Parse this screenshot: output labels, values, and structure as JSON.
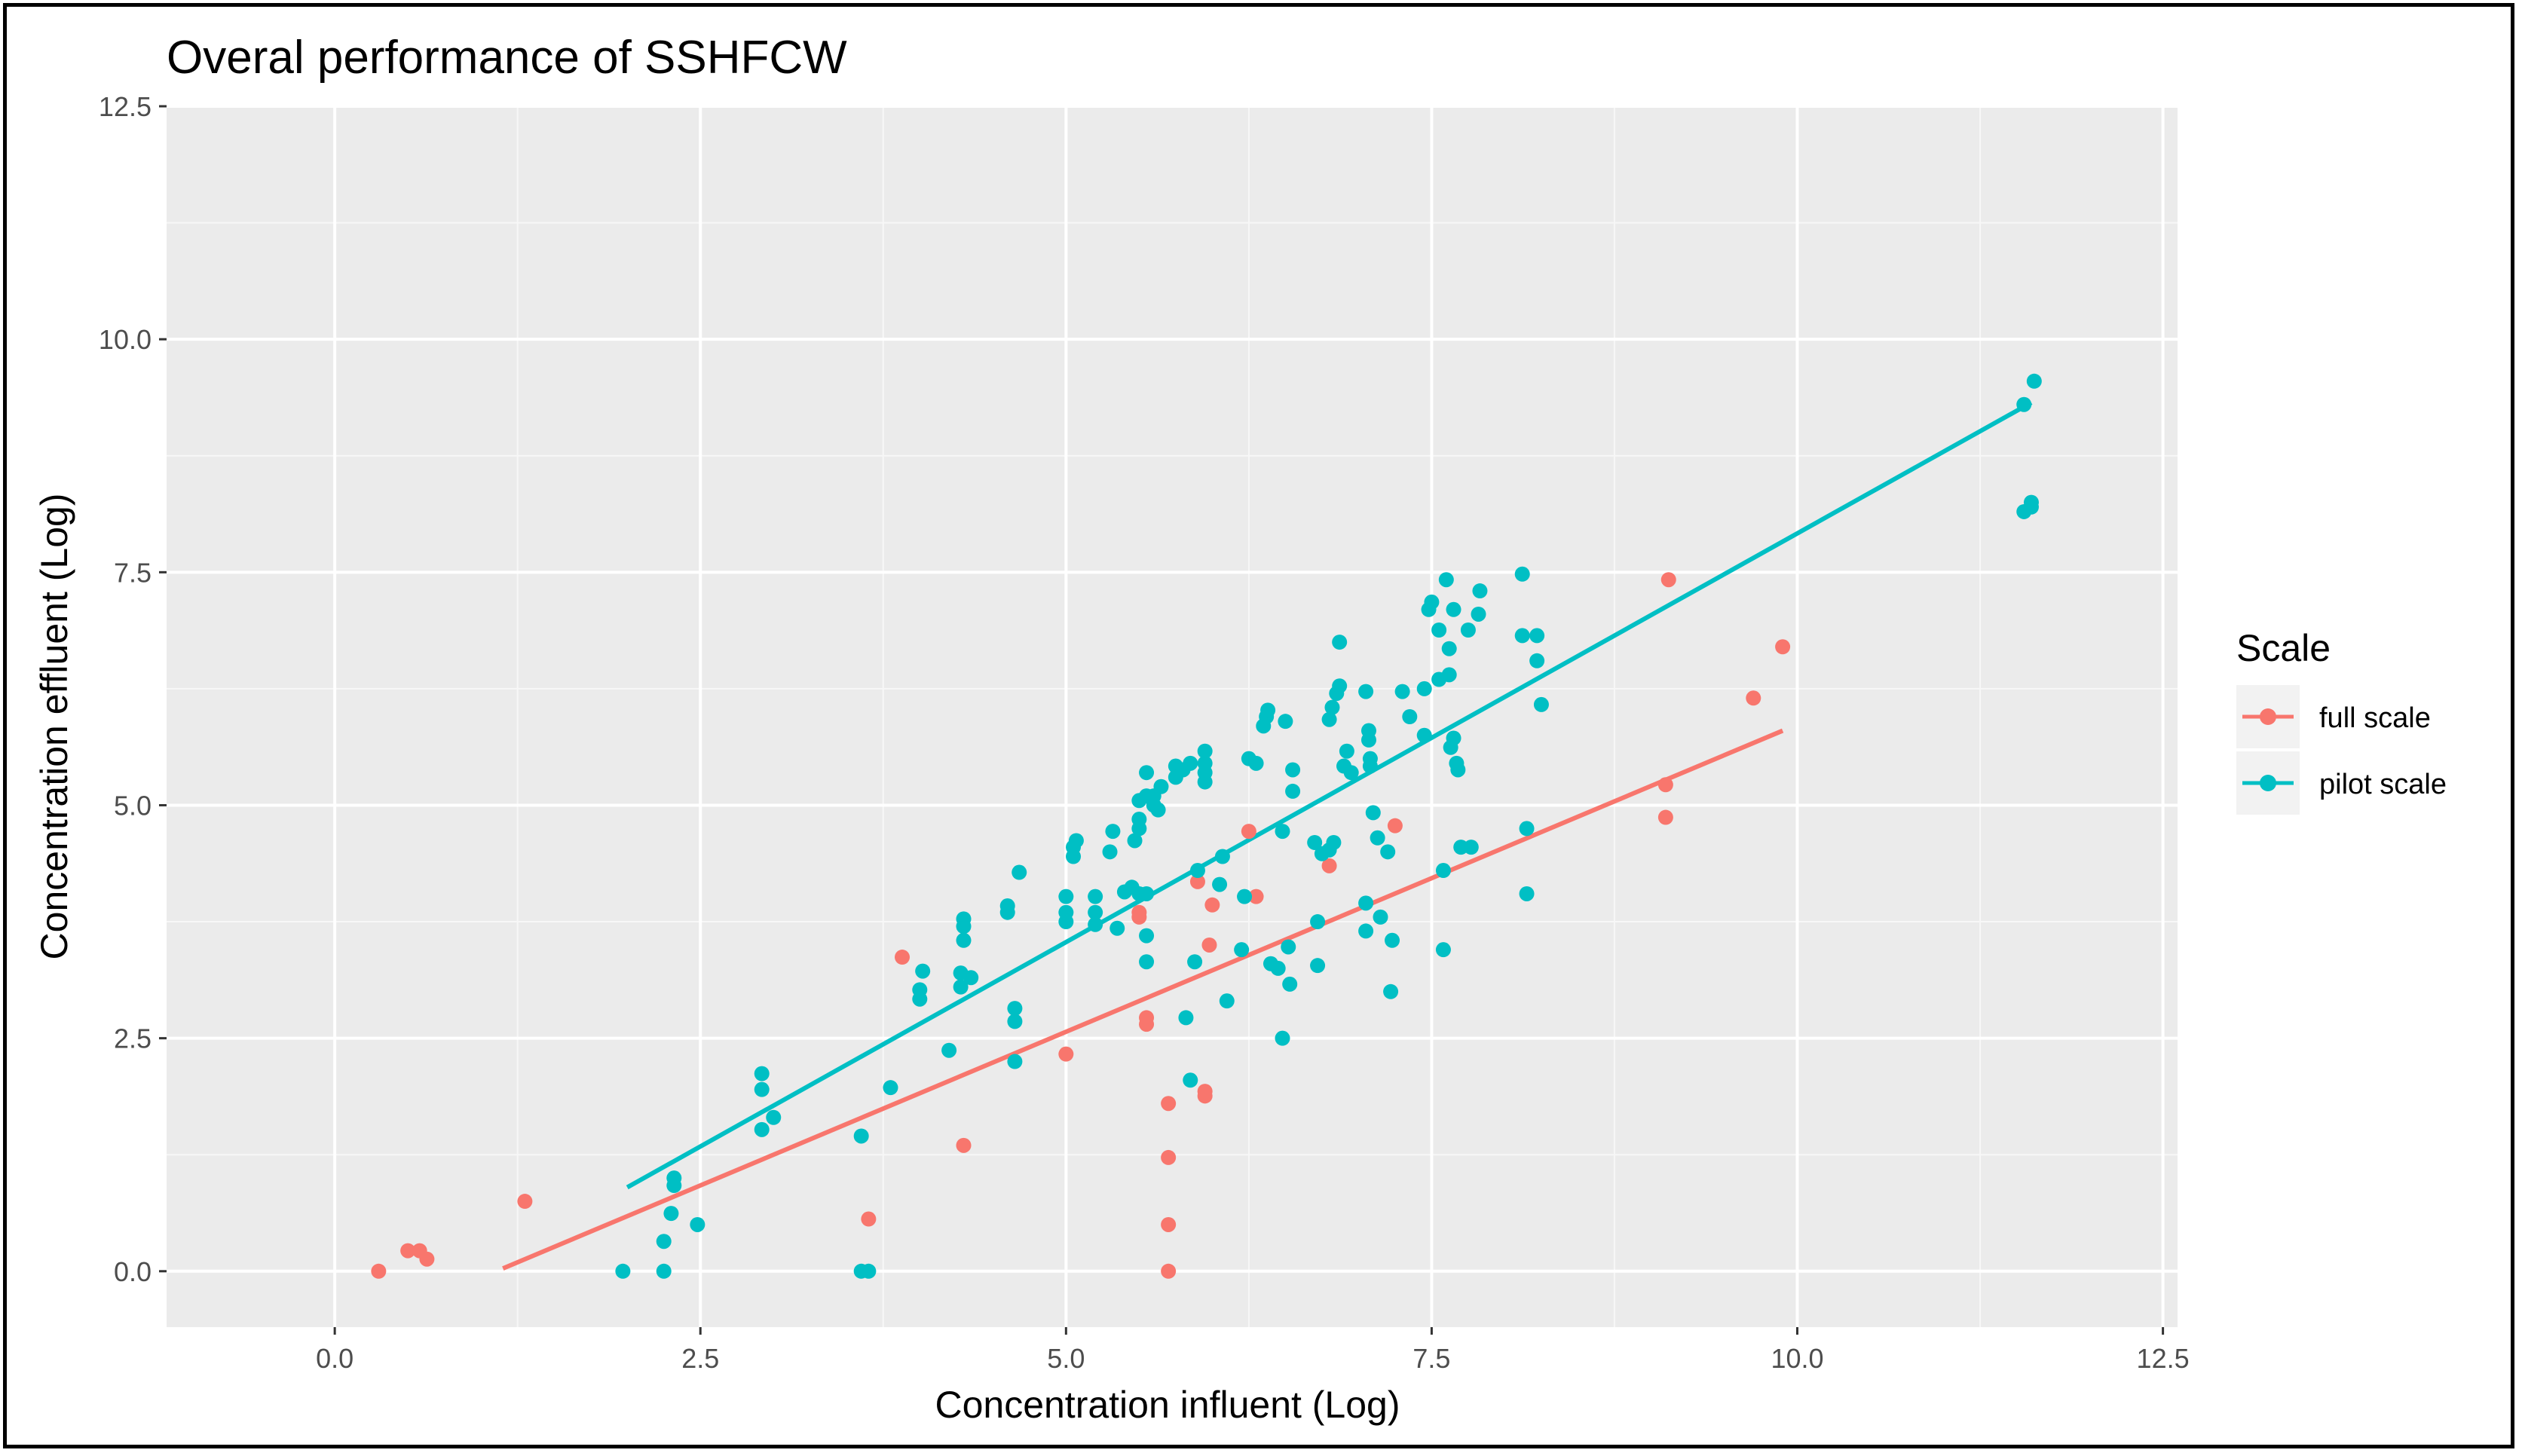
{
  "chart_data": {
    "type": "scatter",
    "title": "Overal performance of SSHFCW",
    "xlabel": "Concentration influent (Log)",
    "ylabel": "Concentration effluent (Log)",
    "xlim": [
      -1.15,
      12.6
    ],
    "ylim": [
      -0.6,
      12.5
    ],
    "x_ticks": [
      0.0,
      2.5,
      5.0,
      7.5,
      10.0,
      12.5
    ],
    "y_ticks": [
      0.0,
      2.5,
      5.0,
      7.5,
      10.0,
      12.5
    ],
    "x_tick_labels": [
      "0.0",
      "2.5",
      "5.0",
      "7.5",
      "10.0",
      "12.5"
    ],
    "y_tick_labels": [
      "0.0",
      "2.5",
      "5.0",
      "7.5",
      "10.0",
      "12.5"
    ],
    "grid": true,
    "legend": {
      "title": "Scale",
      "position": "right"
    },
    "series": [
      {
        "name": "full scale",
        "color": "#F8766D",
        "fit_line": {
          "x": [
            1.15,
            9.9
          ],
          "y": [
            0.03,
            5.8
          ]
        },
        "points": [
          [
            0.3,
            0.0
          ],
          [
            0.5,
            0.22
          ],
          [
            0.58,
            0.22
          ],
          [
            0.63,
            0.13
          ],
          [
            1.3,
            0.75
          ],
          [
            3.65,
            0.56
          ],
          [
            3.88,
            3.37
          ],
          [
            4.3,
            1.35
          ],
          [
            5.0,
            2.33
          ],
          [
            5.5,
            3.8
          ],
          [
            5.5,
            3.85
          ],
          [
            5.55,
            2.65
          ],
          [
            5.55,
            2.72
          ],
          [
            5.7,
            1.8
          ],
          [
            5.7,
            1.22
          ],
          [
            5.7,
            0.5
          ],
          [
            5.7,
            0.0
          ],
          [
            5.9,
            4.18
          ],
          [
            5.95,
            1.88
          ],
          [
            5.95,
            1.93
          ],
          [
            5.98,
            3.5
          ],
          [
            6.0,
            3.93
          ],
          [
            6.25,
            4.72
          ],
          [
            6.3,
            4.02
          ],
          [
            6.8,
            4.35
          ],
          [
            7.25,
            4.78
          ],
          [
            9.1,
            5.22
          ],
          [
            9.1,
            4.87
          ],
          [
            9.12,
            7.42
          ],
          [
            9.7,
            6.15
          ],
          [
            9.9,
            6.7
          ]
        ]
      },
      {
        "name": "pilot scale",
        "color": "#00BFC4",
        "fit_line": {
          "x": [
            2.0,
            11.6
          ],
          "y": [
            0.9,
            9.32
          ]
        },
        "points": [
          [
            1.97,
            0.0
          ],
          [
            2.25,
            0.0
          ],
          [
            2.25,
            0.32
          ],
          [
            2.3,
            0.62
          ],
          [
            2.32,
            0.92
          ],
          [
            2.32,
            1.0
          ],
          [
            2.48,
            0.5
          ],
          [
            2.92,
            1.52
          ],
          [
            2.92,
            1.95
          ],
          [
            2.92,
            2.12
          ],
          [
            3.0,
            1.65
          ],
          [
            3.6,
            1.45
          ],
          [
            3.6,
            0.0
          ],
          [
            3.65,
            0.0
          ],
          [
            3.8,
            1.97
          ],
          [
            4.0,
            2.92
          ],
          [
            4.0,
            3.02
          ],
          [
            4.02,
            3.22
          ],
          [
            4.2,
            2.37
          ],
          [
            4.28,
            3.05
          ],
          [
            4.28,
            3.2
          ],
          [
            4.3,
            3.55
          ],
          [
            4.3,
            3.7
          ],
          [
            4.3,
            3.78
          ],
          [
            4.35,
            3.15
          ],
          [
            4.6,
            3.85
          ],
          [
            4.6,
            3.92
          ],
          [
            4.65,
            2.68
          ],
          [
            4.65,
            2.82
          ],
          [
            4.65,
            2.25
          ],
          [
            4.68,
            4.28
          ],
          [
            5.0,
            3.75
          ],
          [
            5.0,
            3.85
          ],
          [
            5.0,
            4.02
          ],
          [
            5.05,
            4.45
          ],
          [
            5.05,
            4.55
          ],
          [
            5.07,
            4.62
          ],
          [
            5.2,
            3.72
          ],
          [
            5.2,
            3.85
          ],
          [
            5.2,
            4.02
          ],
          [
            5.3,
            4.5
          ],
          [
            5.32,
            4.72
          ],
          [
            5.35,
            3.68
          ],
          [
            5.4,
            4.07
          ],
          [
            5.45,
            4.12
          ],
          [
            5.47,
            4.62
          ],
          [
            5.5,
            4.05
          ],
          [
            5.5,
            4.75
          ],
          [
            5.5,
            4.85
          ],
          [
            5.5,
            5.05
          ],
          [
            5.55,
            3.32
          ],
          [
            5.55,
            3.6
          ],
          [
            5.55,
            4.05
          ],
          [
            5.55,
            5.1
          ],
          [
            5.55,
            5.35
          ],
          [
            5.6,
            5.0
          ],
          [
            5.6,
            5.1
          ],
          [
            5.63,
            4.95
          ],
          [
            5.65,
            5.2
          ],
          [
            5.75,
            5.3
          ],
          [
            5.75,
            5.42
          ],
          [
            5.8,
            5.38
          ],
          [
            5.82,
            2.72
          ],
          [
            5.85,
            2.05
          ],
          [
            5.85,
            5.45
          ],
          [
            5.88,
            3.32
          ],
          [
            5.9,
            4.3
          ],
          [
            5.95,
            5.25
          ],
          [
            5.95,
            5.35
          ],
          [
            5.95,
            5.45
          ],
          [
            5.95,
            5.58
          ],
          [
            6.05,
            4.15
          ],
          [
            6.07,
            4.45
          ],
          [
            6.1,
            2.9
          ],
          [
            6.2,
            3.45
          ],
          [
            6.22,
            4.02
          ],
          [
            6.25,
            5.5
          ],
          [
            6.3,
            5.45
          ],
          [
            6.35,
            5.85
          ],
          [
            6.37,
            5.95
          ],
          [
            6.38,
            6.02
          ],
          [
            6.4,
            3.3
          ],
          [
            6.45,
            3.25
          ],
          [
            6.48,
            2.5
          ],
          [
            6.48,
            4.72
          ],
          [
            6.5,
            5.9
          ],
          [
            6.52,
            3.48
          ],
          [
            6.53,
            3.08
          ],
          [
            6.55,
            5.15
          ],
          [
            6.55,
            5.38
          ],
          [
            6.7,
            4.6
          ],
          [
            6.72,
            3.28
          ],
          [
            6.72,
            3.75
          ],
          [
            6.75,
            4.48
          ],
          [
            6.8,
            4.52
          ],
          [
            6.8,
            5.92
          ],
          [
            6.82,
            6.05
          ],
          [
            6.83,
            4.6
          ],
          [
            6.85,
            6.2
          ],
          [
            6.87,
            6.28
          ],
          [
            6.87,
            6.75
          ],
          [
            6.9,
            5.42
          ],
          [
            6.92,
            5.58
          ],
          [
            6.95,
            5.35
          ],
          [
            7.05,
            3.95
          ],
          [
            7.05,
            3.65
          ],
          [
            7.05,
            6.22
          ],
          [
            7.07,
            5.7
          ],
          [
            7.07,
            5.8
          ],
          [
            7.08,
            5.42
          ],
          [
            7.08,
            5.5
          ],
          [
            7.1,
            4.92
          ],
          [
            7.13,
            4.65
          ],
          [
            7.15,
            3.8
          ],
          [
            7.2,
            4.5
          ],
          [
            7.22,
            3.0
          ],
          [
            7.23,
            3.55
          ],
          [
            7.3,
            6.22
          ],
          [
            7.35,
            5.95
          ],
          [
            7.45,
            5.75
          ],
          [
            7.45,
            6.25
          ],
          [
            7.48,
            7.1
          ],
          [
            7.5,
            7.18
          ],
          [
            7.55,
            6.35
          ],
          [
            7.55,
            6.88
          ],
          [
            7.58,
            4.3
          ],
          [
            7.58,
            3.45
          ],
          [
            7.6,
            7.42
          ],
          [
            7.62,
            6.4
          ],
          [
            7.62,
            6.68
          ],
          [
            7.63,
            5.62
          ],
          [
            7.65,
            5.72
          ],
          [
            7.65,
            7.1
          ],
          [
            7.67,
            5.45
          ],
          [
            7.68,
            5.38
          ],
          [
            7.7,
            4.55
          ],
          [
            7.75,
            6.88
          ],
          [
            7.77,
            4.55
          ],
          [
            7.82,
            7.05
          ],
          [
            7.83,
            7.3
          ],
          [
            8.12,
            7.48
          ],
          [
            8.12,
            6.82
          ],
          [
            8.15,
            4.75
          ],
          [
            8.15,
            4.05
          ],
          [
            8.22,
            6.82
          ],
          [
            8.22,
            6.55
          ],
          [
            8.25,
            6.08
          ],
          [
            11.55,
            9.3
          ],
          [
            11.55,
            8.15
          ],
          [
            11.6,
            8.2
          ],
          [
            11.6,
            8.25
          ],
          [
            11.62,
            9.55
          ]
        ]
      }
    ]
  }
}
